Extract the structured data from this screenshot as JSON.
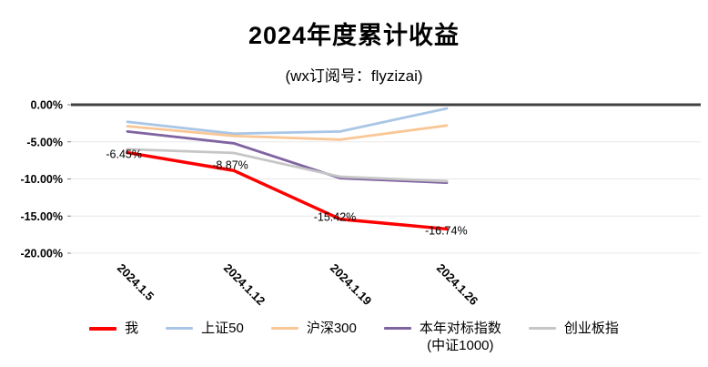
{
  "title": "2024年度累计收益",
  "subtitle": "(wx订阅号：flyzizai)",
  "chart_data": {
    "type": "line",
    "title": "2024年度累计收益",
    "subtitle": "(wx订阅号：flyzizai)",
    "categories": [
      "2024.1.5",
      "2024.1.12",
      "2024.1.19",
      "2024.1.26"
    ],
    "series": [
      {
        "name": "我",
        "values": [
          -6.45,
          -8.87,
          -15.42,
          -16.74
        ],
        "data_labels": [
          "-6.45%",
          "-8.87%",
          "-15.42%",
          "-16.74%"
        ],
        "color": "#FF0000",
        "line_width": 3.5
      },
      {
        "name": "上证50",
        "values": [
          -2.3,
          -3.9,
          -3.6,
          -0.5
        ],
        "color": "#A9C6E6",
        "line_width": 2.8
      },
      {
        "name": "沪深300",
        "values": [
          -2.9,
          -4.2,
          -4.7,
          -2.8
        ],
        "color": "#F9C795",
        "line_width": 2.8
      },
      {
        "name": "本年对标指数",
        "name_line2": "(中证1000)",
        "values": [
          -3.6,
          -5.2,
          -9.9,
          -10.5
        ],
        "color": "#8064A2",
        "line_width": 2.8
      },
      {
        "name": "创业板指",
        "values": [
          -6.0,
          -6.5,
          -9.7,
          -10.3
        ],
        "color": "#C6C6C6",
        "line_width": 2.8
      }
    ],
    "ylim": [
      -20,
      0
    ],
    "yticks": [
      {
        "value": 0,
        "label": "0.00%"
      },
      {
        "value": -5,
        "label": "-5.00%"
      },
      {
        "value": -10,
        "label": "-10.00%"
      },
      {
        "value": -15,
        "label": "-15.00%"
      },
      {
        "value": -20,
        "label": "-20.00%"
      }
    ],
    "grid": true,
    "legend_position": "bottom"
  },
  "colors": {
    "background": "#FFFFFF",
    "zero_axis_line": "#404040",
    "gridline": "#E8E8E8",
    "tick": "#808080",
    "text": "#000000"
  }
}
